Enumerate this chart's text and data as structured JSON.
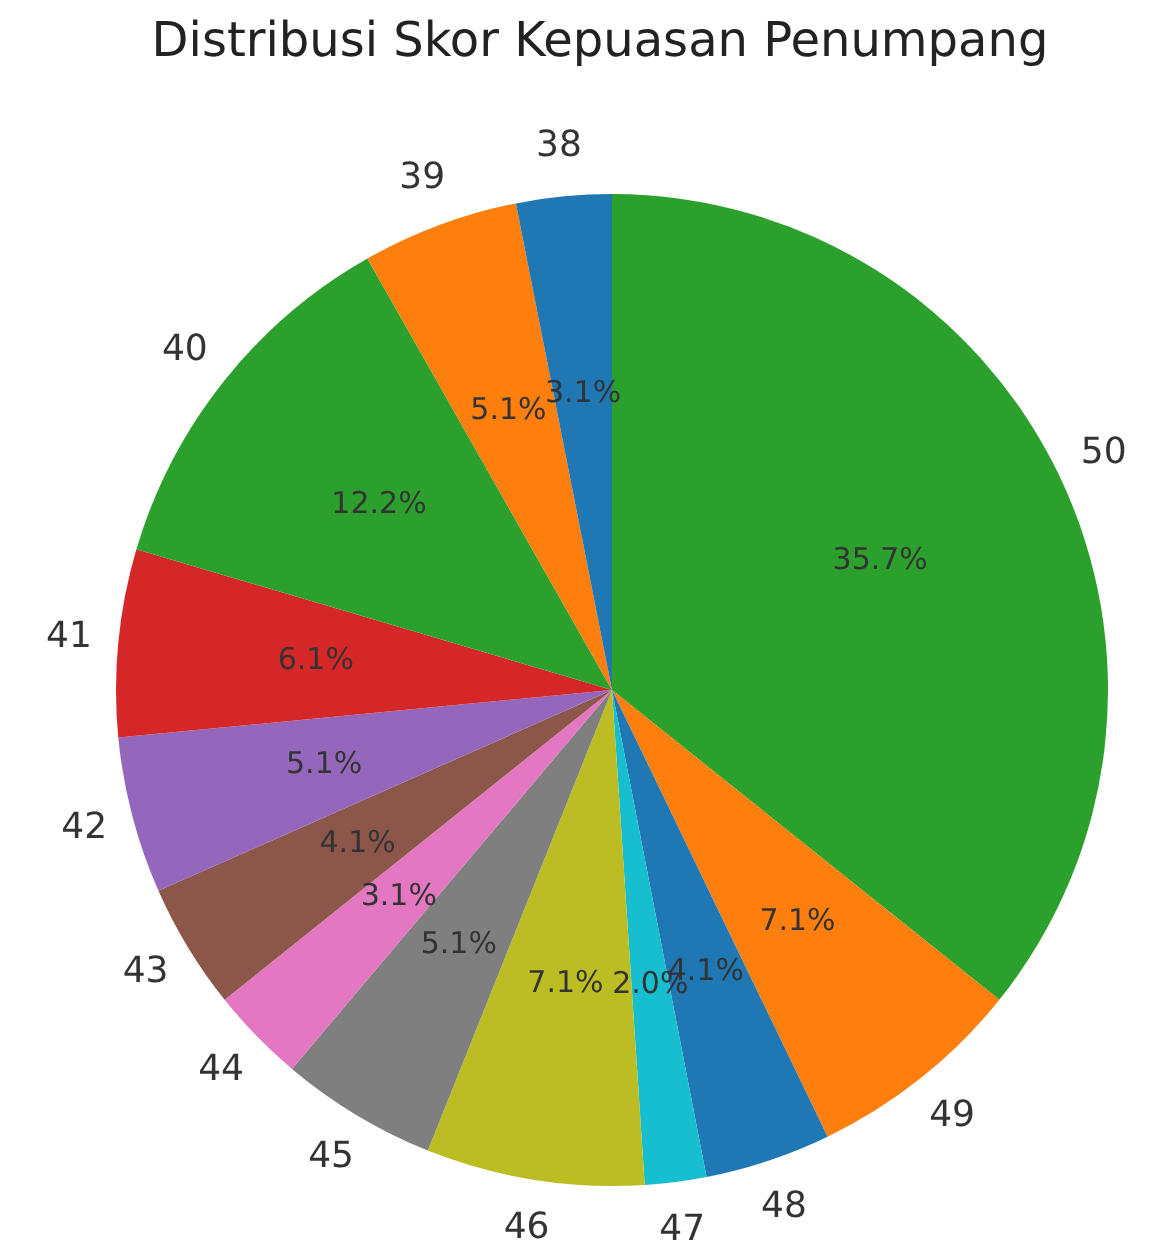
{
  "chart_data": {
    "type": "pie",
    "title": "Distribusi Skor Kepuasan Penumpang",
    "categories": [
      "50",
      "49",
      "48",
      "47",
      "46",
      "45",
      "44",
      "43",
      "42",
      "41",
      "40",
      "39",
      "38"
    ],
    "values": [
      35.7,
      7.1,
      4.1,
      2.0,
      7.1,
      5.1,
      3.1,
      4.1,
      5.1,
      6.1,
      12.2,
      5.1,
      3.1
    ],
    "colors": [
      "#2ca02c",
      "#ff7f0e",
      "#1f77b4",
      "#17becf",
      "#bcbd22",
      "#7f7f7f",
      "#e377c2",
      "#8c564b",
      "#9467bd",
      "#d62728",
      "#2ca02c",
      "#ff7f0e",
      "#1f77b4"
    ],
    "value_labels": [
      "35.7%",
      "7.1%",
      "4.1%",
      "2.0%",
      "7.1%",
      "5.1%",
      "3.1%",
      "4.1%",
      "5.1%",
      "6.1%",
      "12.2%",
      "5.1%",
      "3.1%"
    ],
    "legend": false
  }
}
